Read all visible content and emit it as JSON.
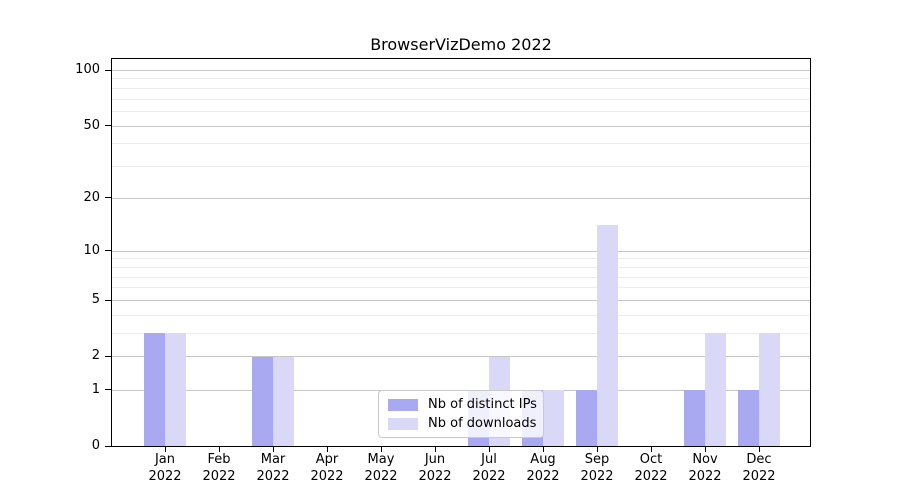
{
  "title": "BrowserVizDemo 2022",
  "chart_data": {
    "type": "bar",
    "title": "BrowserVizDemo 2022",
    "categories": [
      "Jan 2022",
      "Feb 2022",
      "Mar 2022",
      "Apr 2022",
      "May 2022",
      "Jun 2022",
      "Jul 2022",
      "Aug 2022",
      "Sep 2022",
      "Oct 2022",
      "Nov 2022",
      "Dec 2022"
    ],
    "months": [
      "Jan",
      "Feb",
      "Mar",
      "Apr",
      "May",
      "Jun",
      "Jul",
      "Aug",
      "Sep",
      "Oct",
      "Nov",
      "Dec"
    ],
    "year_label": "2022",
    "series": [
      {
        "name": "Nb of distinct IPs",
        "color": "#a9a9f2",
        "values": [
          3,
          0,
          2,
          0,
          0,
          0,
          1,
          1,
          1,
          0,
          1,
          1
        ]
      },
      {
        "name": "Nb of downloads",
        "color": "#d9d9f7",
        "values": [
          3,
          0,
          2,
          0,
          0,
          0,
          2,
          1,
          14,
          0,
          3,
          3
        ]
      }
    ],
    "xlabel": "",
    "ylabel": "",
    "yscale": "log1p",
    "ylim": [
      0,
      115
    ],
    "y_ticks": [
      0,
      1,
      2,
      5,
      10,
      20,
      50,
      100
    ],
    "y_minor_gridlines": [
      3,
      4,
      6,
      7,
      8,
      9,
      30,
      40,
      60,
      70,
      80,
      90
    ],
    "grid": true,
    "legend_position": "lower center"
  },
  "colors": {
    "background": "#ffffff",
    "axis": "#000000",
    "grid_major": "#c6c6c6",
    "grid_minor": "#ededed",
    "legend_border": "#c9c9c9"
  }
}
